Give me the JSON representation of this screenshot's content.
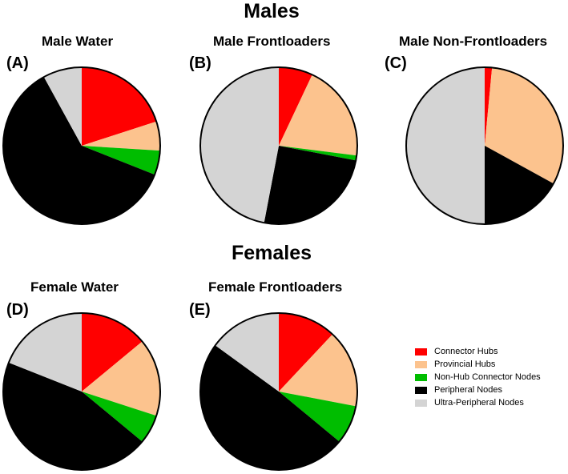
{
  "sections": {
    "males": "Males",
    "females": "Females"
  },
  "legend": {
    "items": [
      {
        "label": "Connector Hubs",
        "color": "#ff0000"
      },
      {
        "label": "Provincial Hubs",
        "color": "#fcc38e"
      },
      {
        "label": "Non-Hub Connector Nodes",
        "color": "#00bd00"
      },
      {
        "label": "Peripheral Nodes",
        "color": "#000000"
      },
      {
        "label": "Ultra-Peripheral Nodes",
        "color": "#d4d4d4"
      }
    ]
  },
  "chart_data": [
    {
      "type": "pie",
      "panel": "(A)",
      "title": "Male Water",
      "categories": [
        "Connector Hubs",
        "Provincial Hubs",
        "Non-Hub Connector Nodes",
        "Peripheral Nodes",
        "Ultra-Peripheral Nodes"
      ],
      "values": [
        20,
        6,
        5,
        61,
        8
      ]
    },
    {
      "type": "pie",
      "panel": "(B)",
      "title": "Male Frontloaders",
      "categories": [
        "Connector Hubs",
        "Provincial Hubs",
        "Non-Hub Connector Nodes",
        "Peripheral Nodes",
        "Ultra-Peripheral Nodes"
      ],
      "values": [
        7,
        20,
        1,
        25,
        47
      ]
    },
    {
      "type": "pie",
      "panel": "(C)",
      "title": "Male Non-Frontloaders",
      "categories": [
        "Connector Hubs",
        "Provincial Hubs",
        "Non-Hub Connector Nodes",
        "Peripheral Nodes",
        "Ultra-Peripheral Nodes"
      ],
      "values": [
        1.5,
        31.5,
        0,
        17,
        50
      ]
    },
    {
      "type": "pie",
      "panel": "(D)",
      "title": "Female Water",
      "categories": [
        "Connector Hubs",
        "Provincial Hubs",
        "Non-Hub Connector Nodes",
        "Peripheral Nodes",
        "Ultra-Peripheral Nodes"
      ],
      "values": [
        14,
        16,
        6,
        45,
        19
      ]
    },
    {
      "type": "pie",
      "panel": "(E)",
      "title": "Female Frontloaders",
      "categories": [
        "Connector Hubs",
        "Provincial Hubs",
        "Non-Hub Connector Nodes",
        "Peripheral Nodes",
        "Ultra-Peripheral Nodes"
      ],
      "values": [
        12,
        16,
        8,
        49,
        15
      ]
    }
  ]
}
